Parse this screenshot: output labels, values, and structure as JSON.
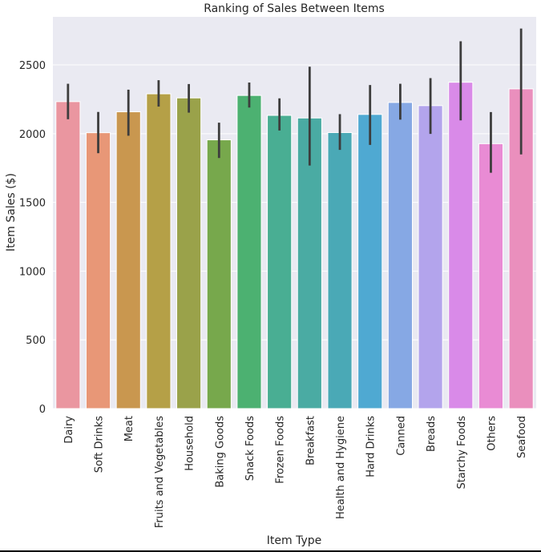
{
  "chart_data": {
    "type": "bar",
    "title": "Ranking of Sales Between Items",
    "xlabel": "Item Type",
    "ylabel": "Item Sales ($)",
    "ylim": [
      0,
      2850
    ],
    "yticks": [
      0,
      500,
      1000,
      1500,
      2000,
      2500
    ],
    "grid": true,
    "categories": [
      "Dairy",
      "Soft Drinks",
      "Meat",
      "Fruits and Vegetables",
      "Household",
      "Baking Goods",
      "Snack Foods",
      "Frozen Foods",
      "Breakfast",
      "Health and Hygiene",
      "Hard Drinks",
      "Canned",
      "Breads",
      "Starchy Foods",
      "Others",
      "Seafood"
    ],
    "values": [
      2233,
      2007,
      2159,
      2290,
      2260,
      1955,
      2278,
      2133,
      2114,
      2008,
      2140,
      2227,
      2204,
      2374,
      1927,
      2326
    ],
    "error_low": [
      2105,
      1858,
      1985,
      2197,
      2153,
      1823,
      2190,
      2023,
      1768,
      1882,
      1918,
      2102,
      1998,
      2097,
      1716,
      1849
    ],
    "error_high": [
      2363,
      2158,
      2320,
      2389,
      2361,
      2080,
      2372,
      2257,
      2487,
      2142,
      2354,
      2363,
      2404,
      2672,
      2157,
      2765
    ],
    "colors": [
      "#ea96a0",
      "#e89777",
      "#c9974f",
      "#b5a047",
      "#9aa24a",
      "#77a84c",
      "#4cb171",
      "#49ae93",
      "#4aaba3",
      "#4aa9b6",
      "#4fa9d2",
      "#86a8e4",
      "#b3a4ec",
      "#d98ae8",
      "#e98bd4",
      "#ea8fbd"
    ]
  }
}
